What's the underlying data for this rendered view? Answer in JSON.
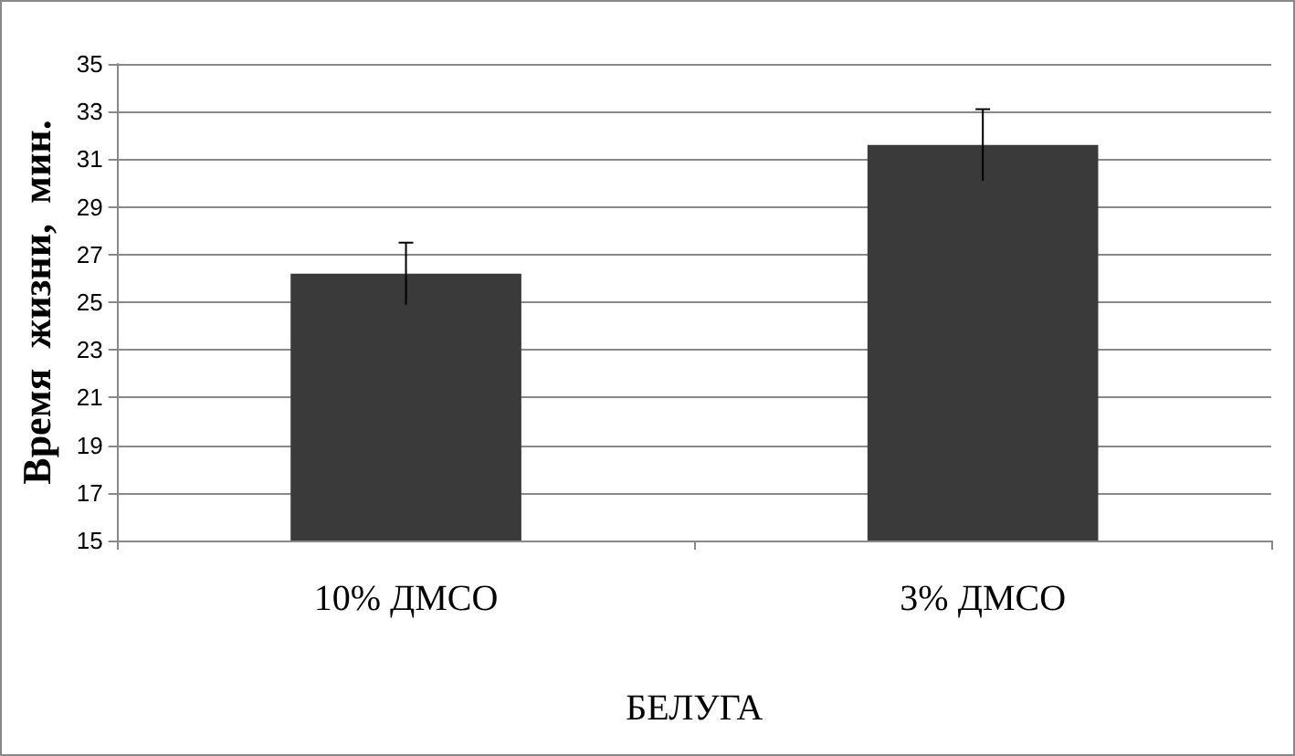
{
  "chart_data": {
    "type": "bar",
    "ylabel": "Время  жизни,  мин.",
    "xlabel": "БЕЛУГА",
    "categories": [
      "10% ДМСО",
      "3% ДМСО"
    ],
    "series": [
      {
        "color": "#3a3a3a",
        "values": [
          26.2,
          31.6
        ],
        "errors": [
          1.3,
          1.5
        ]
      }
    ],
    "ylim": [
      15,
      35
    ],
    "yticks": [
      15,
      17,
      19,
      21,
      23,
      25,
      27,
      29,
      31,
      33,
      35
    ],
    "grid": "y"
  }
}
